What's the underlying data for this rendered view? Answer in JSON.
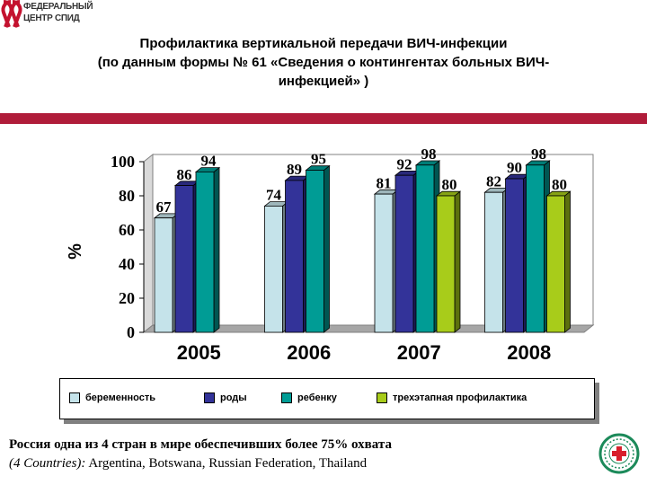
{
  "logo": {
    "line1": "ФЕДЕРАЛЬНЫЙ",
    "line2": "ЦЕНТР СПИД",
    "icon": "aids-ribbon-logo-icon"
  },
  "title": {
    "line1": "Профилактика вертикальной передачи ВИЧ-инфекции",
    "line2": "(по данным формы № 61 «Сведения о контингентах больных ВИЧ-",
    "line3": "инфекцией» )"
  },
  "colors": {
    "accent_bar": "#b01c3a",
    "pregnancy": "#c5e3ea",
    "births": "#333399",
    "child": "#009c95",
    "three_stage": "#a8cc1a"
  },
  "chart_data": {
    "type": "bar",
    "categories": [
      "2005",
      "2006",
      "2007",
      "2008"
    ],
    "series": [
      {
        "name": "беременность",
        "values": [
          67,
          74,
          81,
          82
        ]
      },
      {
        "name": "роды",
        "values": [
          86,
          89,
          92,
          90
        ]
      },
      {
        "name": "ребенку",
        "values": [
          94,
          95,
          98,
          98
        ]
      },
      {
        "name": "трехэтапная профилактика",
        "values": [
          null,
          null,
          80,
          80
        ]
      }
    ],
    "ylabel": "%",
    "yticks": [
      0,
      20,
      40,
      60,
      80,
      100
    ],
    "ylim": [
      0,
      100
    ],
    "grid": false,
    "legend": "bottom",
    "three_d": true
  },
  "footer": {
    "line1": "Россия одна из 4 стран в мире обеспечивших более 75% охвата",
    "line2_prefix": "(4 Countries):",
    "line2_rest": " Argentina, Botswana, Russian Federation, Thailand"
  },
  "badge": {
    "icon": "red-cross-emblem-icon"
  }
}
